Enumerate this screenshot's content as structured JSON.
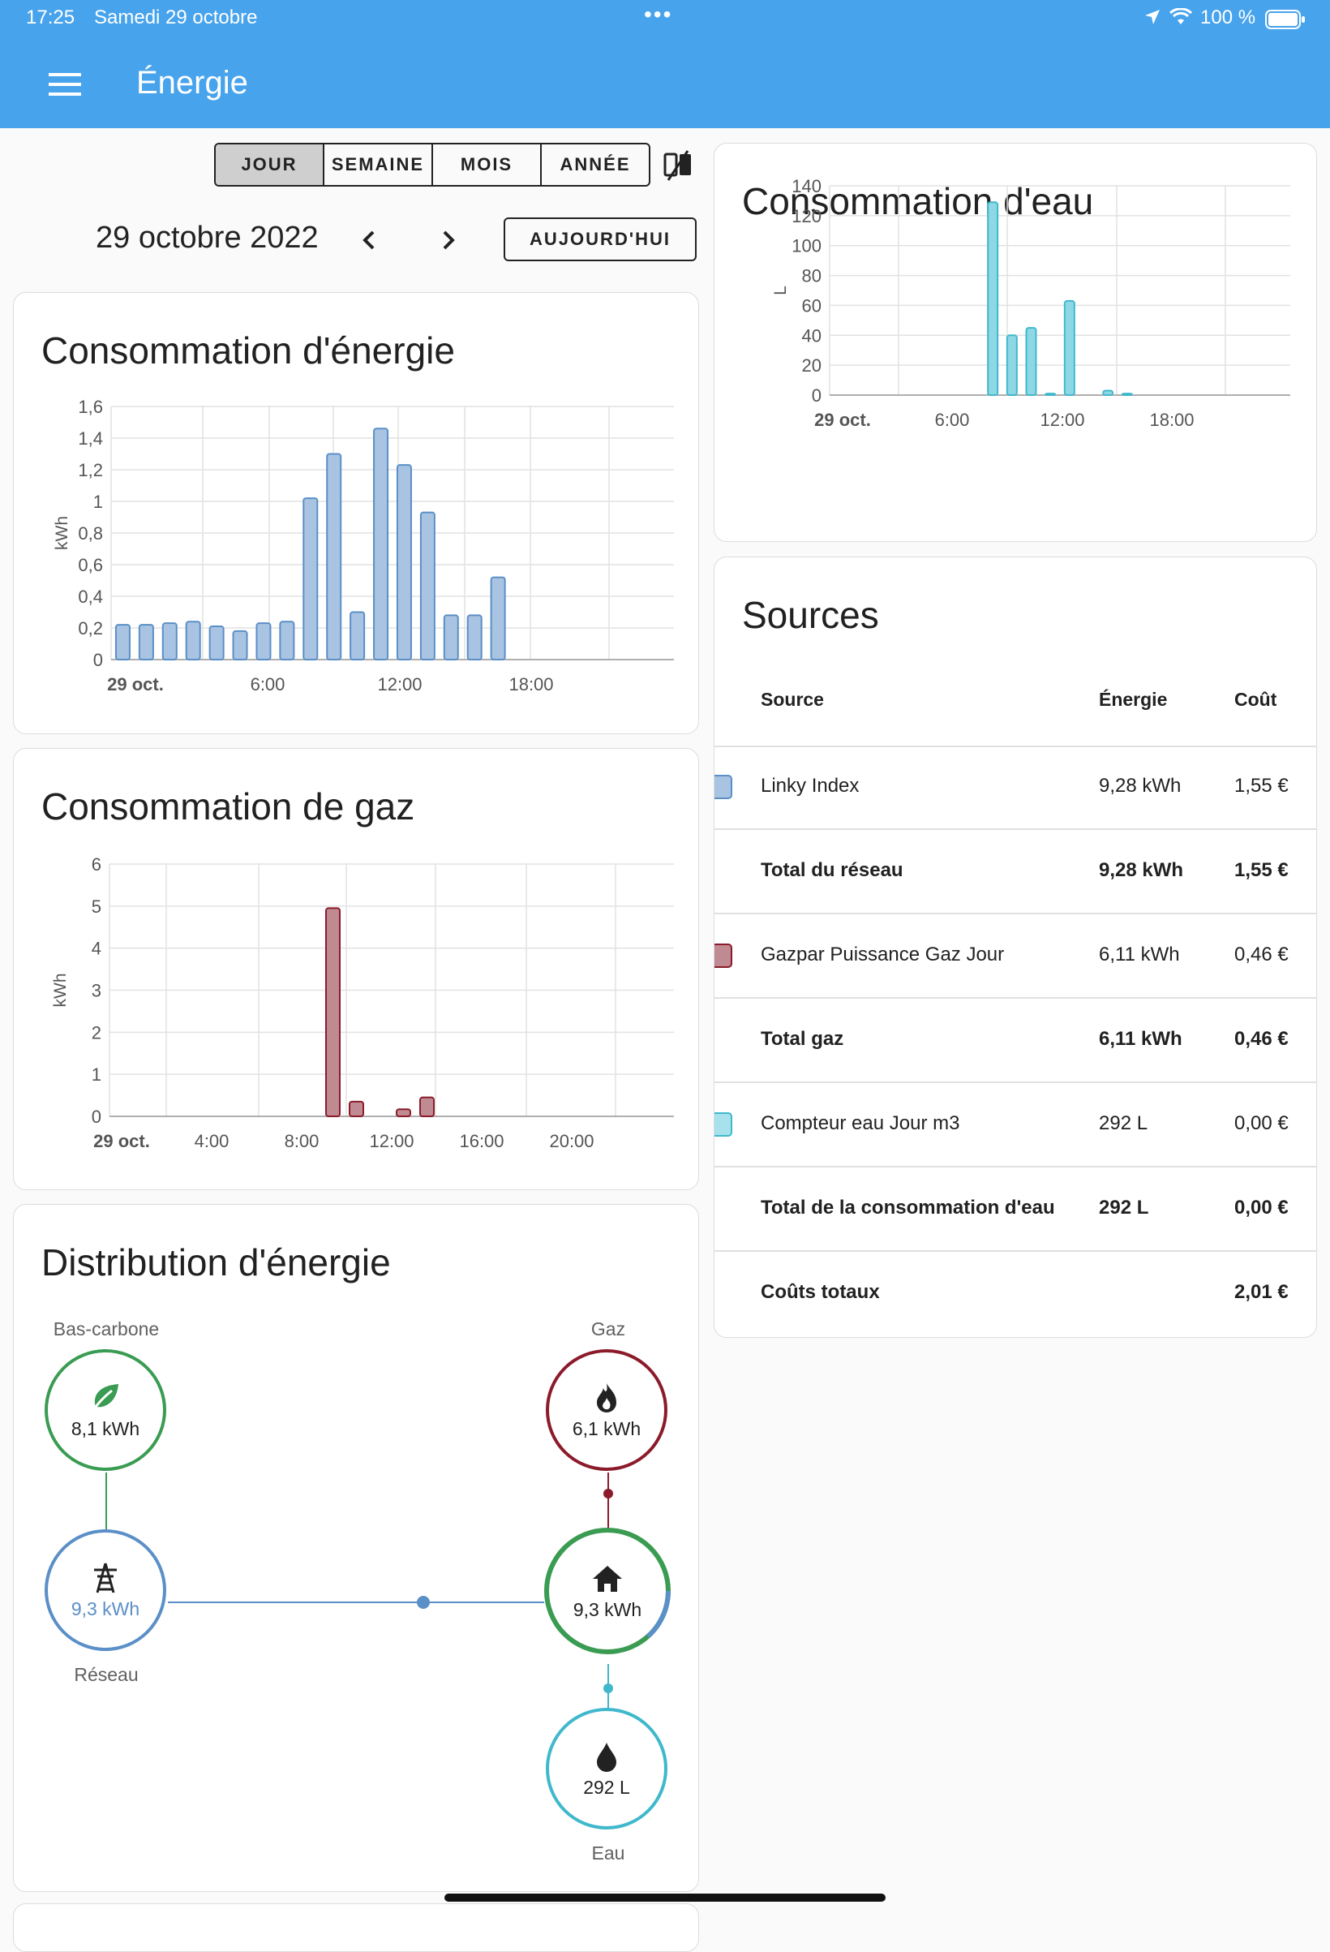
{
  "status_bar": {
    "time": "17:25",
    "date": "Samedi 29 octobre",
    "dots": "•••",
    "battery": "100 %"
  },
  "header": {
    "title": "Énergie",
    "menu_icon": "menu-icon"
  },
  "period": {
    "tabs": [
      "JOUR",
      "SEMAINE",
      "MOIS",
      "ANNÉE"
    ],
    "active": "JOUR",
    "date": "29 octobre 2022",
    "today_label": "AUJOURD'HUI"
  },
  "energy_card": {
    "title": "Consommation d'énergie"
  },
  "gas_card": {
    "title": "Consommation de gaz"
  },
  "water_card": {
    "title": "Consommation d'eau"
  },
  "chart_data": [
    {
      "type": "bar",
      "title": "Consommation d'énergie",
      "ylabel": "kWh",
      "ylim": [
        0,
        1.6
      ],
      "yticks": [
        "0",
        "0,2",
        "0,4",
        "0,6",
        "0,8",
        "1",
        "1,2",
        "1,4",
        "1,6"
      ],
      "xticks": [
        "29 oct.",
        "6:00",
        "12:00",
        "18:00"
      ],
      "x": [
        0,
        1,
        2,
        3,
        4,
        5,
        6,
        7,
        8,
        9,
        10,
        11,
        12,
        13,
        14,
        15,
        16
      ],
      "values": [
        0.22,
        0.22,
        0.23,
        0.24,
        0.21,
        0.18,
        0.23,
        0.24,
        1.02,
        1.3,
        0.3,
        1.46,
        1.23,
        0.93,
        0.28,
        0.28,
        0.52
      ],
      "color": "#a9c4e2"
    },
    {
      "type": "bar",
      "title": "Consommation de gaz",
      "ylabel": "kWh",
      "ylim": [
        0,
        6
      ],
      "yticks": [
        "0",
        "1",
        "2",
        "3",
        "4",
        "5",
        "6"
      ],
      "xticks": [
        "29 oct.",
        "4:00",
        "8:00",
        "12:00",
        "16:00",
        "20:00"
      ],
      "x": [
        9,
        10,
        12,
        13
      ],
      "values": [
        4.95,
        0.35,
        0.17,
        0.45
      ],
      "color": "#c08a93"
    },
    {
      "type": "bar",
      "title": "Consommation d'eau",
      "ylabel": "L",
      "ylim": [
        0,
        140
      ],
      "yticks": [
        "0",
        "20",
        "40",
        "60",
        "80",
        "100",
        "120",
        "140"
      ],
      "xticks": [
        "29 oct.",
        "6:00",
        "12:00",
        "18:00"
      ],
      "x": [
        8,
        9,
        10,
        11,
        12,
        14,
        15
      ],
      "values": [
        129,
        40,
        45,
        1,
        63,
        3,
        1
      ],
      "color": "#8ed8e6"
    }
  ],
  "sources": {
    "title": "Sources",
    "headers": {
      "source": "Source",
      "energy": "Énergie",
      "cost": "Coût"
    },
    "rows": [
      {
        "name": "Linky Index",
        "energy": "9,28 kWh",
        "cost": "1,55 €",
        "bold": false,
        "swatch": "#a9c4e2",
        "swatch_border": "#5a8fc7"
      },
      {
        "name": "Total du réseau",
        "energy": "9,28 kWh",
        "cost": "1,55 €",
        "bold": true
      },
      {
        "name": "Gazpar Puissance Gaz Jour",
        "energy": "6,11 kWh",
        "cost": "0,46 €",
        "bold": false,
        "swatch": "#c08a93",
        "swatch_border": "#8b1b2b"
      },
      {
        "name": "Total gaz",
        "energy": "6,11 kWh",
        "cost": "0,46 €",
        "bold": true
      },
      {
        "name": "Compteur eau Jour m3",
        "energy": "292 L",
        "cost": "0,00 €",
        "bold": false,
        "swatch": "#a7e2ec",
        "swatch_border": "#3fb8cc"
      },
      {
        "name": "Total de la consommation d'eau",
        "energy": "292 L",
        "cost": "0,00 €",
        "bold": true
      },
      {
        "name": "Coûts totaux",
        "energy": "",
        "cost": "2,01 €",
        "bold": true
      }
    ]
  },
  "distribution": {
    "title": "Distribution d'énergie",
    "low_carbon": {
      "label": "Bas-carbone",
      "value": "8,1 kWh"
    },
    "grid": {
      "label": "Réseau",
      "value": "9,3 kWh"
    },
    "gas": {
      "label": "Gaz",
      "value": "6,1 kWh"
    },
    "home": {
      "value": "9,3 kWh"
    },
    "water": {
      "label": "Eau",
      "value": "292 L"
    }
  },
  "colors": {
    "header": "#47a3ec",
    "grid": "#5a8fc7",
    "gas": "#8b1b2b",
    "low_carbon": "#3a9b52",
    "water": "#3fb8cc"
  }
}
